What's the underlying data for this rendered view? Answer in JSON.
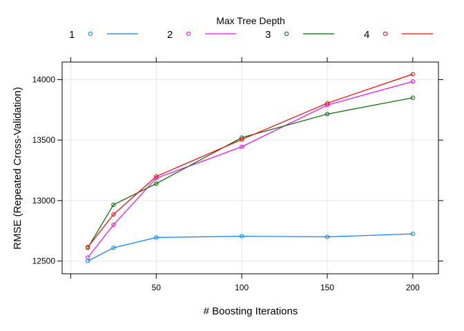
{
  "chart_data": {
    "type": "line",
    "title": "",
    "xlabel": "# Boosting Iterations",
    "ylabel": "RMSE (Repeated Cross-Validation)",
    "legend": {
      "title": "Max Tree Depth",
      "placement": "top"
    },
    "x": [
      10,
      25,
      50,
      100,
      150,
      200
    ],
    "xlim": [
      -5,
      215
    ],
    "ylim": [
      12395,
      14145
    ],
    "xticks": [
      50,
      100,
      150,
      200
    ],
    "yticks": [
      12500,
      13000,
      13500,
      14000
    ],
    "grid": true,
    "series": [
      {
        "name": "1",
        "color": "#0080ff",
        "values": [
          12500,
          12610,
          12695,
          12705,
          12700,
          12725
        ]
      },
      {
        "name": "2",
        "color": "#ff00ff",
        "values": [
          12530,
          12800,
          13185,
          13445,
          13790,
          13985
        ]
      },
      {
        "name": "3",
        "color": "#006400",
        "values": [
          12610,
          12965,
          13140,
          13520,
          13715,
          13850
        ]
      },
      {
        "name": "4",
        "color": "#ff0000",
        "values": [
          12615,
          12885,
          13200,
          13505,
          13805,
          14045
        ]
      }
    ]
  }
}
